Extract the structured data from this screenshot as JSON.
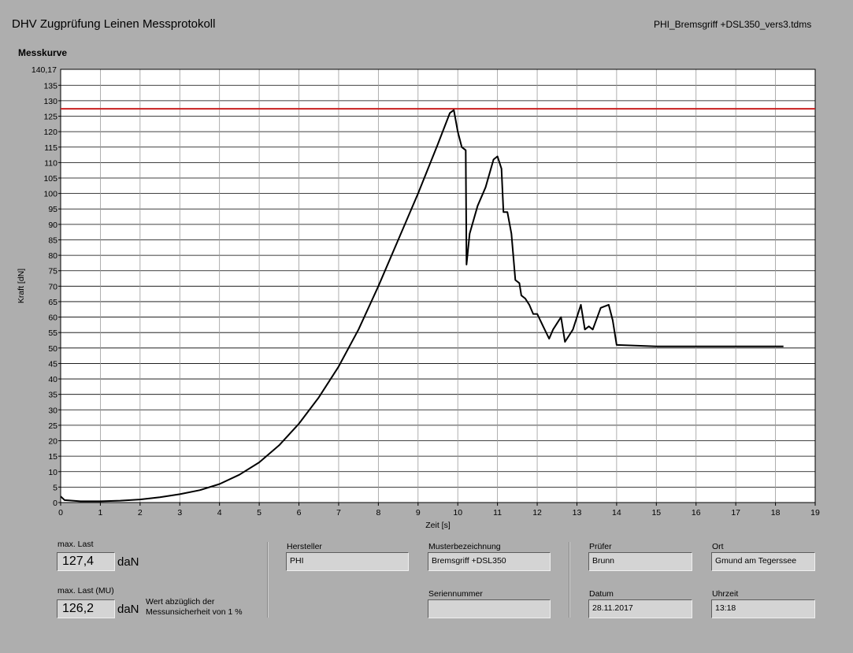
{
  "header": {
    "title": "DHV Zugprüfung Leinen Messprotokoll",
    "filename": "PHI_Bremsgriff +DSL350_vers3.tdms",
    "section_title": "Messkurve"
  },
  "chart_data": {
    "type": "line",
    "xlabel": "Zeit [s]",
    "ylabel": "Kraft [dN]",
    "xlim": [
      0,
      19
    ],
    "ylim": [
      0,
      140.17
    ],
    "x_ticks": [
      0,
      1,
      2,
      3,
      4,
      5,
      6,
      7,
      8,
      9,
      10,
      11,
      12,
      13,
      14,
      15,
      16,
      17,
      18,
      19
    ],
    "y_ticks": [
      0,
      5,
      10,
      15,
      20,
      25,
      30,
      35,
      40,
      45,
      50,
      55,
      60,
      65,
      70,
      75,
      80,
      85,
      90,
      95,
      100,
      105,
      110,
      115,
      120,
      125,
      130,
      135
    ],
    "y_max_label": "140,17",
    "grid": true,
    "threshold_line": {
      "value": 127.4,
      "color": "#c82020"
    },
    "series": [
      {
        "color": "#000000",
        "x": [
          0,
          0.1,
          0.5,
          1,
          1.5,
          2,
          2.5,
          3,
          3.5,
          4,
          4.5,
          5,
          5.5,
          6,
          6.5,
          7,
          7.5,
          8,
          8.5,
          9,
          9.5,
          9.8,
          9.9,
          10.0,
          10.1,
          10.2,
          10.22,
          10.3,
          10.5,
          10.7,
          10.9,
          11.0,
          11.1,
          11.15,
          11.25,
          11.35,
          11.45,
          11.55,
          11.6,
          11.7,
          11.8,
          11.9,
          12.0,
          12.15,
          12.3,
          12.4,
          12.6,
          12.7,
          12.75,
          12.9,
          13.1,
          13.2,
          13.3,
          13.4,
          13.6,
          13.8,
          13.9,
          14.0,
          15,
          16,
          17,
          18,
          18.2
        ],
        "y": [
          2,
          0.8,
          0.4,
          0.4,
          0.6,
          1,
          1.7,
          2.7,
          4,
          6,
          9,
          13,
          18.5,
          25.5,
          34,
          44,
          56,
          70,
          85,
          100,
          116,
          126,
          127,
          120,
          115,
          114,
          77,
          87,
          96,
          102,
          111,
          112,
          108,
          94,
          94,
          87,
          72,
          71,
          67,
          66,
          64,
          61,
          61,
          57,
          53,
          56,
          60,
          52,
          53,
          56,
          64,
          56,
          57,
          56,
          63,
          64,
          59,
          51,
          50.5,
          50.5,
          50.5,
          50.5,
          50.5
        ]
      }
    ]
  },
  "results": {
    "max_last_label": "max. Last",
    "max_last_value": "127,4",
    "max_last_unit": "daN",
    "max_last_mu_label": "max. Last (MU)",
    "max_last_mu_value": "126,2",
    "max_last_mu_unit": "daN",
    "note": "Wert abzüglich der Messunsicherheit von 1 %"
  },
  "info": {
    "hersteller_label": "Hersteller",
    "hersteller_value": "PHI",
    "muster_label": "Musterbezeichnung",
    "muster_value": "Bremsgriff +DSL350",
    "serien_label": "Seriennummer",
    "serien_value": "",
    "pruefer_label": "Prüfer",
    "pruefer_value": "Brunn",
    "ort_label": "Ort",
    "ort_value": "Gmund am Tegerssee",
    "datum_label": "Datum",
    "datum_value": "28.11.2017",
    "uhrzeit_label": "Uhrzeit",
    "uhrzeit_value": "13:18"
  }
}
